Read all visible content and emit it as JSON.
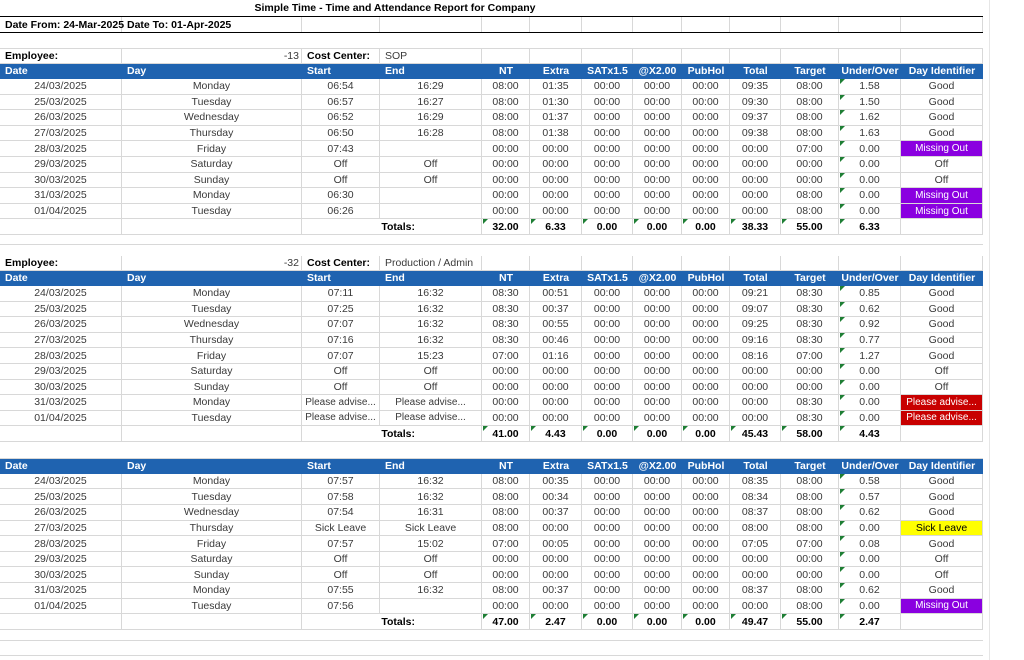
{
  "title": "Simple Time - Time and Attendance Report for Company",
  "date_from": "Date From: 24-Mar-2025",
  "date_to": "Date To: 01-Apr-2025",
  "labels": {
    "employee": "Employee:",
    "cost_center": "Cost Center:",
    "totals": "Totals:"
  },
  "columns": [
    "Date",
    "Day",
    "Start",
    "End",
    "NT",
    "Extra",
    "SATx1.5",
    "@X2.00",
    "PubHol",
    "Total",
    "Target",
    "Under/Over",
    "Day Identifier"
  ],
  "colors": {
    "header_bg": "#1F63B0",
    "grid": "#D8D8D8",
    "triangle": "#1E7E34",
    "missing_out_bg": "#8A00E0",
    "please_advise_bg": "#C80000",
    "sick_leave_bg": "#FFFF00",
    "badge_light_text": "#FFFFFF",
    "badge_dark_text": "#000000"
  },
  "badge_styles": {
    "Missing Out": {
      "bg": "#8A00E0",
      "fg": "#FFFFFF"
    },
    "Please advise...": {
      "bg": "#C80000",
      "fg": "#FFFFFF"
    },
    "Sick Leave": {
      "bg": "#FFFF00",
      "fg": "#000000"
    }
  },
  "sections": [
    {
      "employee": "-13",
      "cost_center": "SOP",
      "rows": [
        [
          "24/03/2025",
          "Monday",
          "06:54",
          "16:29",
          "08:00",
          "01:35",
          "00:00",
          "00:00",
          "00:00",
          "09:35",
          "08:00",
          "1.58",
          "Good"
        ],
        [
          "25/03/2025",
          "Tuesday",
          "06:57",
          "16:27",
          "08:00",
          "01:30",
          "00:00",
          "00:00",
          "00:00",
          "09:30",
          "08:00",
          "1.50",
          "Good"
        ],
        [
          "26/03/2025",
          "Wednesday",
          "06:52",
          "16:29",
          "08:00",
          "01:37",
          "00:00",
          "00:00",
          "00:00",
          "09:37",
          "08:00",
          "1.62",
          "Good"
        ],
        [
          "27/03/2025",
          "Thursday",
          "06:50",
          "16:28",
          "08:00",
          "01:38",
          "00:00",
          "00:00",
          "00:00",
          "09:38",
          "08:00",
          "1.63",
          "Good"
        ],
        [
          "28/03/2025",
          "Friday",
          "07:43",
          "",
          "00:00",
          "00:00",
          "00:00",
          "00:00",
          "00:00",
          "00:00",
          "07:00",
          "0.00",
          "Missing Out"
        ],
        [
          "29/03/2025",
          "Saturday",
          "Off",
          "Off",
          "00:00",
          "00:00",
          "00:00",
          "00:00",
          "00:00",
          "00:00",
          "00:00",
          "0.00",
          "Off"
        ],
        [
          "30/03/2025",
          "Sunday",
          "Off",
          "Off",
          "00:00",
          "00:00",
          "00:00",
          "00:00",
          "00:00",
          "00:00",
          "00:00",
          "0.00",
          "Off"
        ],
        [
          "31/03/2025",
          "Monday",
          "06:30",
          "",
          "00:00",
          "00:00",
          "00:00",
          "00:00",
          "00:00",
          "00:00",
          "08:00",
          "0.00",
          "Missing Out"
        ],
        [
          "01/04/2025",
          "Tuesday",
          "06:26",
          "",
          "00:00",
          "00:00",
          "00:00",
          "00:00",
          "00:00",
          "00:00",
          "08:00",
          "0.00",
          "Missing Out"
        ]
      ],
      "totals": [
        "32.00",
        "6.33",
        "0.00",
        "0.00",
        "0.00",
        "38.33",
        "55.00",
        "6.33"
      ]
    },
    {
      "employee": "-32",
      "cost_center": "Production / Admin",
      "rows": [
        [
          "24/03/2025",
          "Monday",
          "07:11",
          "16:32",
          "08:30",
          "00:51",
          "00:00",
          "00:00",
          "00:00",
          "09:21",
          "08:30",
          "0.85",
          "Good"
        ],
        [
          "25/03/2025",
          "Tuesday",
          "07:25",
          "16:32",
          "08:30",
          "00:37",
          "00:00",
          "00:00",
          "00:00",
          "09:07",
          "08:30",
          "0.62",
          "Good"
        ],
        [
          "26/03/2025",
          "Wednesday",
          "07:07",
          "16:32",
          "08:30",
          "00:55",
          "00:00",
          "00:00",
          "00:00",
          "09:25",
          "08:30",
          "0.92",
          "Good"
        ],
        [
          "27/03/2025",
          "Thursday",
          "07:16",
          "16:32",
          "08:30",
          "00:46",
          "00:00",
          "00:00",
          "00:00",
          "09:16",
          "08:30",
          "0.77",
          "Good"
        ],
        [
          "28/03/2025",
          "Friday",
          "07:07",
          "15:23",
          "07:00",
          "01:16",
          "00:00",
          "00:00",
          "00:00",
          "08:16",
          "07:00",
          "1.27",
          "Good"
        ],
        [
          "29/03/2025",
          "Saturday",
          "Off",
          "Off",
          "00:00",
          "00:00",
          "00:00",
          "00:00",
          "00:00",
          "00:00",
          "00:00",
          "0.00",
          "Off"
        ],
        [
          "30/03/2025",
          "Sunday",
          "Off",
          "Off",
          "00:00",
          "00:00",
          "00:00",
          "00:00",
          "00:00",
          "00:00",
          "00:00",
          "0.00",
          "Off"
        ],
        [
          "31/03/2025",
          "Monday",
          "Please advise...",
          "Please advise...",
          "00:00",
          "00:00",
          "00:00",
          "00:00",
          "00:00",
          "00:00",
          "08:30",
          "0.00",
          "Please advise..."
        ],
        [
          "01/04/2025",
          "Tuesday",
          "Please advise...",
          "Please advise...",
          "00:00",
          "00:00",
          "00:00",
          "00:00",
          "00:00",
          "00:00",
          "08:30",
          "0.00",
          "Please advise..."
        ]
      ],
      "totals": [
        "41.00",
        "4.43",
        "0.00",
        "0.00",
        "0.00",
        "45.43",
        "58.00",
        "4.43"
      ]
    },
    {
      "rows": [
        [
          "24/03/2025",
          "Monday",
          "07:57",
          "16:32",
          "08:00",
          "00:35",
          "00:00",
          "00:00",
          "00:00",
          "08:35",
          "08:00",
          "0.58",
          "Good"
        ],
        [
          "25/03/2025",
          "Tuesday",
          "07:58",
          "16:32",
          "08:00",
          "00:34",
          "00:00",
          "00:00",
          "00:00",
          "08:34",
          "08:00",
          "0.57",
          "Good"
        ],
        [
          "26/03/2025",
          "Wednesday",
          "07:54",
          "16:31",
          "08:00",
          "00:37",
          "00:00",
          "00:00",
          "00:00",
          "08:37",
          "08:00",
          "0.62",
          "Good"
        ],
        [
          "27/03/2025",
          "Thursday",
          "Sick Leave",
          "Sick Leave",
          "08:00",
          "00:00",
          "00:00",
          "00:00",
          "00:00",
          "08:00",
          "08:00",
          "0.00",
          "Sick Leave"
        ],
        [
          "28/03/2025",
          "Friday",
          "07:57",
          "15:02",
          "07:00",
          "00:05",
          "00:00",
          "00:00",
          "00:00",
          "07:05",
          "07:00",
          "0.08",
          "Good"
        ],
        [
          "29/03/2025",
          "Saturday",
          "Off",
          "Off",
          "00:00",
          "00:00",
          "00:00",
          "00:00",
          "00:00",
          "00:00",
          "00:00",
          "0.00",
          "Off"
        ],
        [
          "30/03/2025",
          "Sunday",
          "Off",
          "Off",
          "00:00",
          "00:00",
          "00:00",
          "00:00",
          "00:00",
          "00:00",
          "00:00",
          "0.00",
          "Off"
        ],
        [
          "31/03/2025",
          "Monday",
          "07:55",
          "16:32",
          "08:00",
          "00:37",
          "00:00",
          "00:00",
          "00:00",
          "08:37",
          "08:00",
          "0.62",
          "Good"
        ],
        [
          "01/04/2025",
          "Tuesday",
          "07:56",
          "",
          "00:00",
          "00:00",
          "00:00",
          "00:00",
          "00:00",
          "00:00",
          "08:00",
          "0.00",
          "Missing Out"
        ]
      ],
      "totals": [
        "47.00",
        "2.47",
        "0.00",
        "0.00",
        "0.00",
        "49.47",
        "55.00",
        "2.47"
      ]
    }
  ]
}
